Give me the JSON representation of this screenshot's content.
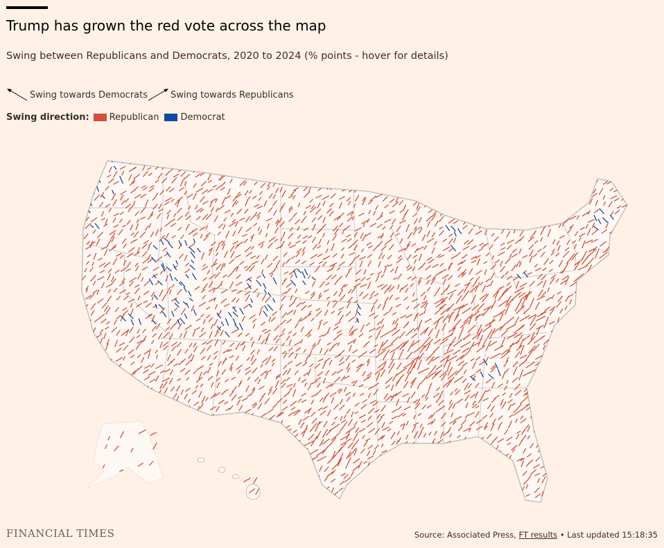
{
  "header": {
    "title": "Trump has grown the red vote across the map",
    "subtitle": "Swing between Republicans and Democrats, 2020 to 2024 (% points - hover for details)"
  },
  "arrow_legend": {
    "dem": "Swing towards Democrats",
    "rep": "Swing towards Republicans"
  },
  "swing_legend": {
    "label": "Swing direction:",
    "republican": "Republican",
    "democrat": "Democrat"
  },
  "colors": {
    "republican": "#d0503b",
    "democrat": "#0f4c9c",
    "background": "#fff1e5",
    "land": "#fdf8f4",
    "border": "#c2c0bf"
  },
  "footer": {
    "logo": "FINANCIAL TIMES",
    "source_prefix": "Source: Associated Press,",
    "source_link": "FT results",
    "updated": "• Last updated 15:18:35"
  },
  "map": {
    "type": "county swing arrow map",
    "region": "United States",
    "insets": [
      "Alaska",
      "Hawaii"
    ]
  }
}
